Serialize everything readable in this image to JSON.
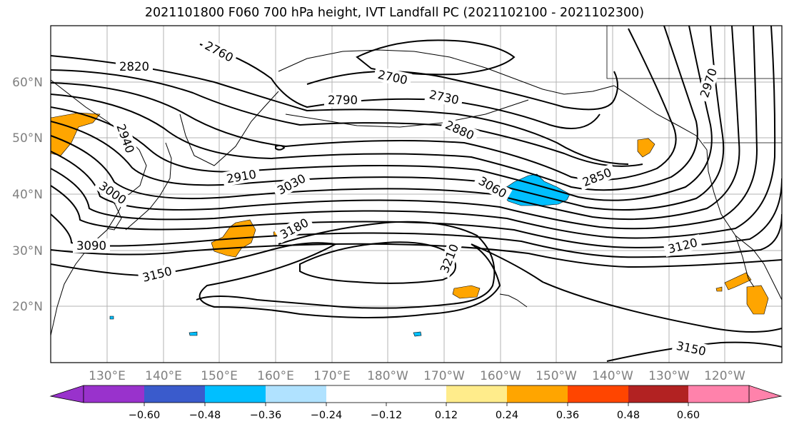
{
  "title": "2021101800 F060 700 hPa height, IVT Landfall PC (2021102100 - 2021102300)",
  "map": {
    "lat_labels": [
      "60°N",
      "50°N",
      "40°N",
      "30°N",
      "20°N"
    ],
    "lon_labels": [
      "130°E",
      "140°E",
      "150°E",
      "160°E",
      "170°E",
      "180°W",
      "170°W",
      "160°W",
      "150°W",
      "140°W",
      "130°W",
      "120°W"
    ],
    "contour_labels": [
      "2760",
      "2820",
      "2700",
      "2730",
      "2790",
      "2880",
      "2940",
      "2970",
      "3000",
      "2910",
      "3030",
      "3060",
      "2850",
      "3180",
      "3090",
      "3150",
      "3210",
      "3120",
      "3150"
    ]
  },
  "colorbar": {
    "ticks": [
      "−0.60",
      "−0.48",
      "−0.36",
      "−0.24",
      "−0.12",
      "0.12",
      "0.24",
      "0.36",
      "0.48",
      "0.60"
    ],
    "colors": [
      "#9932cc",
      "#00008b",
      "#3a5bcc",
      "#00bfff",
      "#b0e2ff",
      "#ffffff",
      "#ffec8b",
      "#ffa500",
      "#ff4500",
      "#b22222",
      "#ff82ab"
    ]
  }
}
